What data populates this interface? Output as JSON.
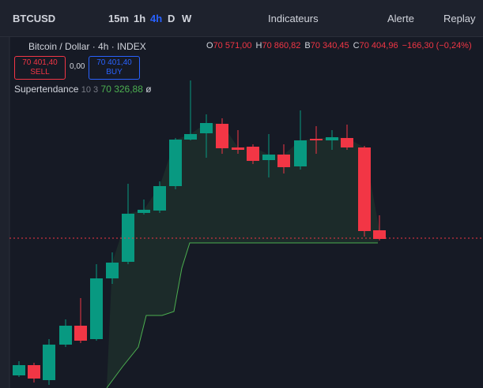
{
  "toolbar": {
    "symbol": "BTCUSD",
    "intervals": [
      "15m",
      "1h",
      "4h",
      "D",
      "W"
    ],
    "indicators": "Indicateurs",
    "alert": "Alerte",
    "replay": "Replay"
  },
  "legend": {
    "title": "Bitcoin / Dollar · 4h · INDEX",
    "ohlc": [
      {
        "key": "O",
        "value": "70 571,00"
      },
      {
        "key": "H",
        "value": "70 860,82"
      },
      {
        "key": "B",
        "value": "70 340,45"
      },
      {
        "key": "C",
        "value": "70 404,96"
      }
    ],
    "change": "−166,30 (−0,24%)"
  },
  "trade": {
    "sell_price": "70 401,40",
    "sell": "SELL",
    "spread": "0,00",
    "buy_price": "70 401,40",
    "buy": "BUY"
  },
  "indicator": {
    "name": "Supertendance",
    "params": "10 3",
    "value": "70 326,88",
    "icon": "ø"
  }
}
